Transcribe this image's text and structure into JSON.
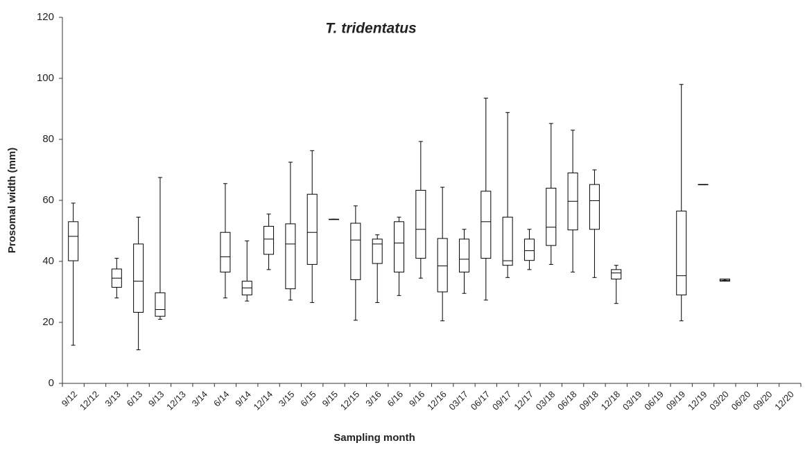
{
  "chart_data": {
    "type": "box",
    "title": "T. tridentatus",
    "x_label": "Sampling month",
    "y_label": "Prosomal width (mm)",
    "categories": [
      "9/12",
      "12/12",
      "3/13",
      "6/13",
      "9/13",
      "12/13",
      "3/14",
      "6/14",
      "9/14",
      "12/14",
      "3/15",
      "6/15",
      "9/15",
      "12/15",
      "3/16",
      "6/16",
      "9/16",
      "12/16",
      "03/17",
      "06/17",
      "09/17",
      "12/17",
      "03/18",
      "06/18",
      "09/18",
      "12/18",
      "03/19",
      "06/19",
      "09/19",
      "12/19",
      "03/20",
      "06/20",
      "09/20",
      "12/20"
    ],
    "min": [
      12.5,
      null,
      28,
      11,
      21,
      null,
      null,
      28,
      27,
      37.3,
      27.3,
      26.5,
      53.8,
      20.7,
      26.5,
      28.8,
      34.5,
      20.5,
      29.5,
      27.3,
      34.7,
      37.3,
      39,
      36.5,
      34.7,
      26.2,
      null,
      null,
      20.5,
      65.2,
      33.8,
      null,
      null,
      null
    ],
    "q1": [
      40.2,
      null,
      31.5,
      23.3,
      22,
      null,
      null,
      36.5,
      29,
      42.3,
      31,
      39,
      53.8,
      34,
      39.3,
      36.5,
      41,
      30,
      36.5,
      41,
      38.7,
      40.3,
      45.2,
      50.3,
      50.5,
      34.2,
      null,
      null,
      29,
      65.2,
      33.5,
      null,
      null,
      null
    ],
    "median": [
      48.2,
      null,
      34.5,
      33.5,
      24.2,
      null,
      null,
      41.5,
      31.3,
      47.3,
      45.7,
      49.5,
      53.8,
      47,
      45.7,
      46,
      50.5,
      38.5,
      40.7,
      53,
      40.2,
      43.5,
      51.2,
      59.7,
      59.9,
      36.2,
      null,
      null,
      35.3,
      65.2,
      33.8,
      null,
      null,
      null
    ],
    "q3": [
      53,
      null,
      37.5,
      45.7,
      29.7,
      null,
      null,
      49.5,
      33.5,
      51.5,
      52.3,
      62,
      53.8,
      52.5,
      47.3,
      53,
      63.3,
      47.5,
      47.3,
      63,
      54.5,
      47.3,
      64,
      69,
      65.2,
      37.3,
      null,
      null,
      56.5,
      65.2,
      34.2,
      null,
      null,
      null
    ],
    "max": [
      59.1,
      null,
      41,
      54.5,
      67.5,
      null,
      null,
      65.5,
      46.7,
      55.5,
      72.5,
      76.3,
      53.8,
      58.2,
      48.7,
      54.5,
      79.3,
      64.3,
      50.5,
      93.5,
      88.8,
      50.5,
      85.2,
      83,
      70,
      38.7,
      null,
      null,
      98,
      65.2,
      33.8,
      null,
      null,
      null
    ],
    "color": "#000000",
    "ylim": [
      0,
      120
    ],
    "yticks": [
      0,
      20,
      40,
      60,
      80,
      100,
      120
    ],
    "grid": false
  }
}
